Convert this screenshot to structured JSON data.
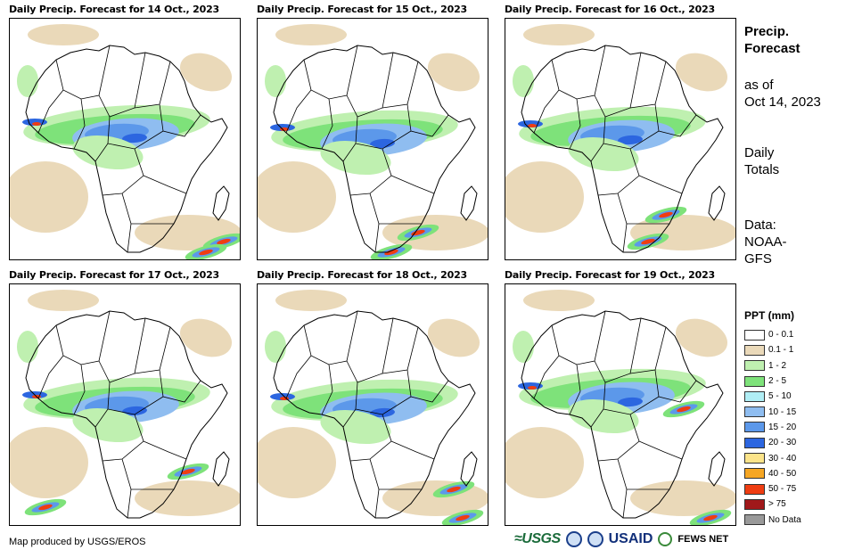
{
  "panels": [
    {
      "title": "Daily Precip. Forecast for 14 Oct., 2023"
    },
    {
      "title": "Daily Precip. Forecast for 15 Oct., 2023"
    },
    {
      "title": "Daily Precip. Forecast for 16 Oct., 2023"
    },
    {
      "title": "Daily Precip. Forecast for 17 Oct., 2023"
    },
    {
      "title": "Daily Precip. Forecast for 18 Oct., 2023"
    },
    {
      "title": "Daily Precip. Forecast for 19 Oct., 2023"
    }
  ],
  "side": {
    "title_line1": "Precip.",
    "title_line2": "Forecast",
    "asof_line1": "as of",
    "asof_line2": "Oct 14, 2023",
    "totals_line1": "Daily",
    "totals_line2": "Totals",
    "source_line1": "Data:",
    "source_line2": "NOAA-",
    "source_line3": "GFS"
  },
  "legend": {
    "title": "PPT (mm)",
    "items": [
      {
        "label": "0 - 0.1",
        "color": "#ffffff"
      },
      {
        "label": "0.1 - 1",
        "color": "#ead9b9"
      },
      {
        "label": "1 - 2",
        "color": "#bff0b0"
      },
      {
        "label": "2 - 5",
        "color": "#7ee27a"
      },
      {
        "label": "5 - 10",
        "color": "#b0eef5"
      },
      {
        "label": "10 - 15",
        "color": "#8fbdf0"
      },
      {
        "label": "15 - 20",
        "color": "#5c98ea"
      },
      {
        "label": "20 - 30",
        "color": "#2c66e0"
      },
      {
        "label": "30 - 40",
        "color": "#fce48a"
      },
      {
        "label": "40 - 50",
        "color": "#f6a623"
      },
      {
        "label": "50 - 75",
        "color": "#ef3d12"
      },
      {
        "label": "> 75",
        "color": "#a0181a"
      },
      {
        "label": "No Data",
        "color": "#999999"
      }
    ]
  },
  "footer": {
    "credit": "Map produced by USGS/EROS",
    "logo_usgs": "≈USGS",
    "logo_usaid": "USAID",
    "logo_fews": "FEWS NET"
  }
}
